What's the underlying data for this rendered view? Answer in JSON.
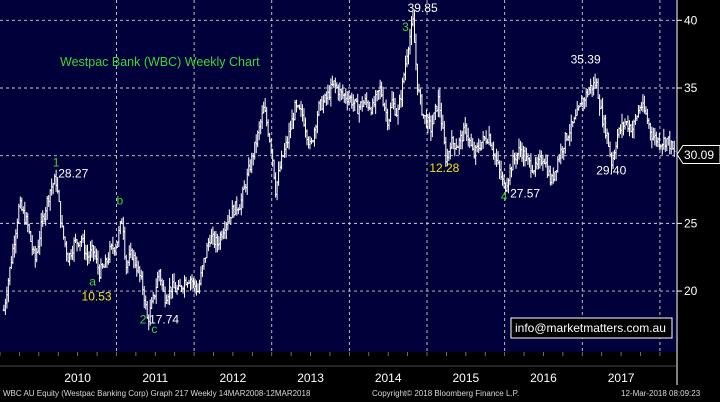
{
  "chart_data": {
    "type": "bar",
    "title": "Westpac Bank (WBC) Weekly Chart",
    "ylim": [
      15.5,
      41.5
    ],
    "yticks": [
      20,
      25,
      30,
      35,
      40
    ],
    "xticks": [
      "2010",
      "2011",
      "2012",
      "2013",
      "2014",
      "2015",
      "2016",
      "2017"
    ],
    "x_start": 2009.55,
    "x_end": 2018.19,
    "last_price": "30.09",
    "series": [
      {
        "style": "ohlc-weekly-bars",
        "points": [
          [
            2009.55,
            18.6
          ],
          [
            2009.65,
            22.5
          ],
          [
            2009.75,
            26.4
          ],
          [
            2009.85,
            25.0
          ],
          [
            2009.95,
            22.2
          ],
          [
            2010.05,
            25.3
          ],
          [
            2010.15,
            27.6
          ],
          [
            2010.22,
            28.27
          ],
          [
            2010.3,
            24.5
          ],
          [
            2010.38,
            22.4
          ],
          [
            2010.45,
            23.5
          ],
          [
            2010.55,
            23.9
          ],
          [
            2010.62,
            22.5
          ],
          [
            2010.7,
            23.0
          ],
          [
            2010.78,
            21.4
          ],
          [
            2010.85,
            21.8
          ],
          [
            2010.92,
            23.0
          ],
          [
            2011.0,
            23.5
          ],
          [
            2011.08,
            25.5
          ],
          [
            2011.12,
            21.8
          ],
          [
            2011.2,
            22.8
          ],
          [
            2011.28,
            21.5
          ],
          [
            2011.35,
            20.0
          ],
          [
            2011.4,
            17.74
          ],
          [
            2011.48,
            19.5
          ],
          [
            2011.55,
            21.5
          ],
          [
            2011.62,
            19.5
          ],
          [
            2011.7,
            20.3
          ],
          [
            2011.8,
            20.0
          ],
          [
            2011.88,
            20.8
          ],
          [
            2011.95,
            21.0
          ],
          [
            2012.05,
            20.0
          ],
          [
            2012.12,
            22.0
          ],
          [
            2012.2,
            24.0
          ],
          [
            2012.3,
            23.5
          ],
          [
            2012.4,
            25.0
          ],
          [
            2012.5,
            26.0
          ],
          [
            2012.6,
            26.5
          ],
          [
            2012.72,
            29.2
          ],
          [
            2012.82,
            31.5
          ],
          [
            2012.9,
            33.5
          ],
          [
            2013.0,
            30.5
          ],
          [
            2013.05,
            27.5
          ],
          [
            2013.12,
            29.5
          ],
          [
            2013.2,
            31.0
          ],
          [
            2013.3,
            33.5
          ],
          [
            2013.4,
            33.0
          ],
          [
            2013.5,
            30.5
          ],
          [
            2013.6,
            33.5
          ],
          [
            2013.7,
            34.2
          ],
          [
            2013.8,
            35.3
          ],
          [
            2013.9,
            34.5
          ],
          [
            2014.0,
            34.3
          ],
          [
            2014.1,
            33.5
          ],
          [
            2014.2,
            34.0
          ],
          [
            2014.3,
            33.5
          ],
          [
            2014.4,
            35.0
          ],
          [
            2014.5,
            32.5
          ],
          [
            2014.55,
            34.0
          ],
          [
            2014.62,
            33.0
          ],
          [
            2014.68,
            35.0
          ],
          [
            2014.75,
            38.0
          ],
          [
            2014.82,
            39.85
          ],
          [
            2014.88,
            35.0
          ],
          [
            2014.95,
            33.0
          ],
          [
            2015.05,
            32.0
          ],
          [
            2015.15,
            34.2
          ],
          [
            2015.25,
            29.5
          ],
          [
            2015.3,
            31.0
          ],
          [
            2015.4,
            30.8
          ],
          [
            2015.5,
            32.0
          ],
          [
            2015.6,
            30.0
          ],
          [
            2015.7,
            31.0
          ],
          [
            2015.8,
            31.5
          ],
          [
            2015.9,
            29.5
          ],
          [
            2016.0,
            27.57
          ],
          [
            2016.1,
            29.5
          ],
          [
            2016.2,
            30.5
          ],
          [
            2016.3,
            29.5
          ],
          [
            2016.4,
            29.0
          ],
          [
            2016.5,
            30.0
          ],
          [
            2016.6,
            28.0
          ],
          [
            2016.7,
            30.0
          ],
          [
            2016.8,
            31.5
          ],
          [
            2016.9,
            32.5
          ],
          [
            2017.0,
            34.0
          ],
          [
            2017.1,
            35.0
          ],
          [
            2017.18,
            35.39
          ],
          [
            2017.25,
            33.0
          ],
          [
            2017.32,
            31.5
          ],
          [
            2017.38,
            29.4
          ],
          [
            2017.45,
            31.5
          ],
          [
            2017.55,
            32.5
          ],
          [
            2017.65,
            32.0
          ],
          [
            2017.75,
            33.8
          ],
          [
            2017.82,
            33.0
          ],
          [
            2017.9,
            31.5
          ],
          [
            2018.0,
            31.0
          ],
          [
            2018.1,
            31.2
          ],
          [
            2018.19,
            30.09
          ]
        ]
      }
    ],
    "annotations": [
      {
        "text": "1",
        "kind": "wave",
        "x": 2010.18,
        "y": 29.2
      },
      {
        "text": "28.27",
        "kind": "price",
        "x": 2010.25,
        "y": 28.4
      },
      {
        "text": "b",
        "kind": "wave",
        "x": 2011.0,
        "y": 26.4
      },
      {
        "text": "a",
        "kind": "wave",
        "x": 2010.65,
        "y": 20.4
      },
      {
        "text": "10.53",
        "kind": "price-yellow",
        "x": 2010.55,
        "y": 19.3
      },
      {
        "text": "2",
        "kind": "wave",
        "x": 2011.3,
        "y": 17.6
      },
      {
        "text": "17.74",
        "kind": "price",
        "x": 2011.42,
        "y": 17.6
      },
      {
        "text": "c",
        "kind": "wave",
        "x": 2011.45,
        "y": 16.9
      },
      {
        "text": "3",
        "kind": "wave",
        "x": 2014.68,
        "y": 39.2
      },
      {
        "text": "39.85",
        "kind": "price",
        "x": 2014.75,
        "y": 40.6
      },
      {
        "text": "12.28",
        "kind": "price-yellow",
        "x": 2015.03,
        "y": 28.8
      },
      {
        "text": "4",
        "kind": "wave",
        "x": 2015.95,
        "y": 26.7
      },
      {
        "text": "27.57",
        "kind": "price",
        "x": 2016.07,
        "y": 26.9
      },
      {
        "text": "35.39",
        "kind": "price",
        "x": 2016.85,
        "y": 36.8
      },
      {
        "text": "29.40",
        "kind": "price",
        "x": 2017.18,
        "y": 28.6
      }
    ],
    "watermark": "info@marketmatters.com.au",
    "colors": {
      "background": "#000000",
      "plot_background": "#00003a",
      "bars": "#ffffff",
      "grid": "#d0d0d0",
      "title": "#39d839",
      "wave_labels": "#39d839",
      "price_labels": "#ffffff",
      "price_labels_yellow": "#f5e500",
      "axis_text": "#ffffff",
      "watermark_border": "#ffffff"
    }
  },
  "footer": {
    "left": "WBC AU Equity (Westpac Banking Corp) Graph 217  Weekly 14MAR2008-12MAR2018",
    "center": "Copyright© 2018 Bloomberg Finance L.P.",
    "right": "12-Mar-2018 08:09:23"
  }
}
